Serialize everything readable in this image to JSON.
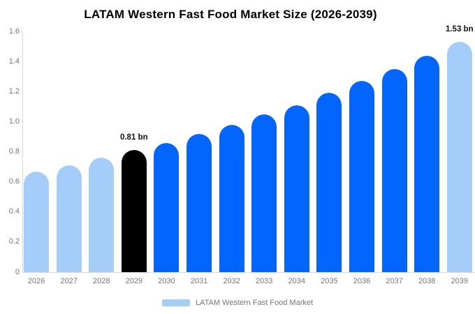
{
  "chart_data": {
    "type": "bar",
    "title": "LATAM Western Fast Food Market Size (2026-2039)",
    "categories": [
      "2026",
      "2027",
      "2028",
      "2029",
      "2030",
      "2031",
      "2032",
      "2033",
      "2034",
      "2035",
      "2036",
      "2037",
      "2038",
      "2039"
    ],
    "values": [
      0.67,
      0.71,
      0.76,
      0.81,
      0.86,
      0.92,
      0.98,
      1.05,
      1.11,
      1.19,
      1.27,
      1.35,
      1.44,
      1.53
    ],
    "unit": "bn",
    "xlabel": "",
    "ylabel": "",
    "ylim": [
      0,
      1.6
    ],
    "ytick_labels": [
      "0",
      "0.2",
      "0.4",
      "0.6",
      "0.8",
      "1.0",
      "1.2",
      "1.4",
      "1.6"
    ],
    "grid": false,
    "legend_position": "bottom",
    "legend": {
      "label": "LATAM Western Fast Food Market"
    },
    "annotations": [
      {
        "category": "2029",
        "text": "0.81 bn"
      },
      {
        "category": "2039",
        "text": "1.53 bn"
      }
    ],
    "bar_color_roles": [
      "light",
      "light",
      "light",
      "black",
      "primary",
      "primary",
      "primary",
      "primary",
      "primary",
      "primary",
      "primary",
      "primary",
      "primary",
      "light"
    ],
    "colors": {
      "primary": "#0266FE",
      "light": "#A5CDFA",
      "black": "#000000",
      "axis_line": "#D9D9D9",
      "tick_text": "#757575",
      "annotation_text": "#111111",
      "title_text": "#000000",
      "background": "#FFFFFF"
    }
  }
}
